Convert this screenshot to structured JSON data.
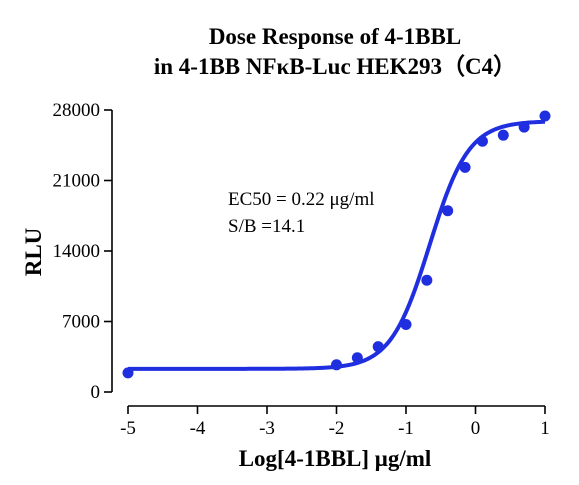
{
  "chart_data": {
    "type": "scatter",
    "title": "Dose Response of 4-1BBL",
    "subtitle": "in 4-1BB NFκB-Luc HEK293（C4）",
    "xlabel": "Log[4-1BBL] μg/ml",
    "ylabel": "RLU",
    "xlim": [
      -5,
      1
    ],
    "ylim": [
      0,
      28000
    ],
    "xticks": [
      -5,
      -4,
      -3,
      -2,
      -1,
      0,
      1
    ],
    "yticks": [
      0,
      7000,
      14000,
      21000,
      28000
    ],
    "grid": false,
    "color": "#1f2fe0",
    "annotations": [
      "EC50 = 0.22 μg/ml",
      "S/B =14.1"
    ],
    "series": [
      {
        "x": [
          -5.0,
          -2.0,
          -1.7,
          -1.4,
          -1.0,
          -0.7,
          -0.4,
          -0.15,
          0.1,
          0.4,
          0.7,
          1.0
        ],
        "values": [
          1900,
          2700,
          3400,
          4500,
          6700,
          11100,
          18000,
          22300,
          24900,
          25500,
          26300,
          27400
        ]
      }
    ],
    "fit": {
      "model": "4PL",
      "bottom": 2300,
      "top": 26900,
      "log_ec50": -0.66,
      "hill": 1.55
    }
  }
}
